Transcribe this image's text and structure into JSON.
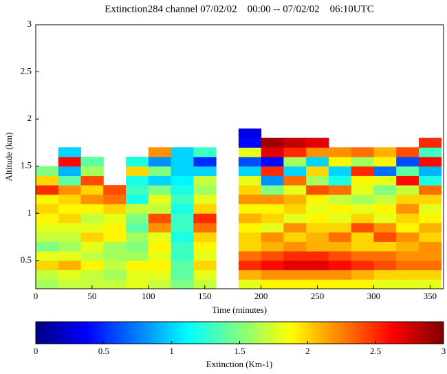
{
  "chart_data": {
    "type": "heatmap",
    "title": "Extinction284 channel 07/02/02    00:00 -- 07/02/02    06:10UTC",
    "x_label": "Time (minutes)",
    "y_label": "Altitude (km)",
    "colorbar_label": "Extinction (Km-1)",
    "colormap": "jet",
    "x_edges": [
      0,
      20,
      40,
      60,
      80,
      100,
      120,
      140,
      160,
      180,
      200,
      220,
      240,
      260,
      280,
      300,
      320,
      340,
      360
    ],
    "y_edges": [
      0.2,
      0.3,
      0.4,
      0.5,
      0.6,
      0.7,
      0.8,
      0.9,
      1.0,
      1.1,
      1.2,
      1.3,
      1.4,
      1.5,
      1.6,
      1.7,
      1.8,
      1.9
    ],
    "z": [
      [
        1.6,
        1.7,
        1.7,
        1.7,
        1.8,
        1.7,
        1.5,
        1.7,
        null,
        1.8,
        1.9,
        1.9,
        1.9,
        1.9,
        1.9,
        1.8,
        1.8,
        1.8
      ],
      [
        1.7,
        1.8,
        1.7,
        1.6,
        1.8,
        1.8,
        1.4,
        1.8,
        null,
        2.1,
        2.2,
        2.2,
        2.2,
        2.2,
        2.1,
        2.0,
        2.0,
        2.0
      ],
      [
        2.0,
        2.1,
        1.9,
        1.7,
        1.9,
        1.9,
        1.4,
        2.0,
        null,
        2.5,
        2.6,
        2.7,
        2.7,
        2.6,
        2.5,
        2.4,
        2.3,
        2.3
      ],
      [
        1.8,
        1.8,
        1.7,
        1.6,
        1.6,
        1.8,
        1.3,
        1.8,
        null,
        2.3,
        2.4,
        2.5,
        2.5,
        2.4,
        2.3,
        2.3,
        2.2,
        2.2
      ],
      [
        1.5,
        1.6,
        1.8,
        1.6,
        1.5,
        1.9,
        1.3,
        1.9,
        null,
        2.0,
        2.1,
        2.2,
        2.1,
        2.1,
        2.0,
        2.0,
        2.1,
        2.2
      ],
      [
        1.7,
        1.7,
        2.0,
        1.9,
        1.6,
        1.8,
        1.2,
        2.0,
        null,
        2.0,
        2.2,
        2.0,
        2.1,
        2.3,
        2.0,
        2.4,
        2.2,
        2.0
      ],
      [
        1.8,
        1.8,
        1.8,
        1.9,
        1.4,
        2.2,
        1.3,
        2.3,
        null,
        1.9,
        1.8,
        2.2,
        2.0,
        2.0,
        2.4,
        2.2,
        1.9,
        2.1
      ],
      [
        1.9,
        2.0,
        1.7,
        1.8,
        1.5,
        2.4,
        1.3,
        2.5,
        null,
        2.1,
        2.0,
        1.8,
        1.9,
        1.8,
        2.0,
        1.8,
        2.0,
        1.9
      ],
      [
        2.0,
        1.9,
        1.9,
        2.0,
        1.7,
        1.7,
        1.2,
        2.0,
        null,
        1.9,
        1.9,
        2.0,
        1.8,
        1.9,
        1.8,
        1.9,
        2.2,
        1.8
      ],
      [
        1.9,
        2.0,
        2.2,
        2.3,
        1.2,
        1.8,
        1.3,
        1.8,
        null,
        2.2,
        2.2,
        2.1,
        1.9,
        1.7,
        1.6,
        1.7,
        2.0,
        2.0
      ],
      [
        2.5,
        2.2,
        2.0,
        2.4,
        1.3,
        1.5,
        1.2,
        1.6,
        null,
        2.0,
        1.5,
        1.8,
        2.4,
        2.3,
        1.8,
        1.5,
        1.7,
        2.3
      ],
      [
        2.0,
        1.4,
        2.4,
        null,
        1.2,
        1.0,
        1.1,
        1.7,
        null,
        1.8,
        0.8,
        2.3,
        1.6,
        1.2,
        1.9,
        1.8,
        2.6,
        1.2
      ],
      [
        1.5,
        0.9,
        1.6,
        null,
        2.0,
        1.5,
        1.0,
        1.0,
        null,
        1.0,
        2.5,
        1.0,
        2.0,
        1.0,
        2.5,
        0.7,
        1.4,
        0.9
      ],
      [
        null,
        2.6,
        1.4,
        null,
        1.2,
        0.8,
        1.0,
        0.5,
        null,
        0.6,
        0.4,
        1.6,
        1.0,
        1.9,
        1.6,
        1.9,
        0.6,
        2.6
      ],
      [
        null,
        1.0,
        null,
        null,
        null,
        2.2,
        1.0,
        1.3,
        null,
        1.8,
        2.7,
        2.5,
        2.2,
        2.2,
        2.3,
        2.1,
        2.4,
        1.3
      ],
      [
        null,
        null,
        null,
        null,
        null,
        null,
        null,
        null,
        null,
        0.4,
        2.9,
        2.8,
        2.7,
        null,
        null,
        null,
        null,
        2.5
      ],
      [
        null,
        null,
        null,
        null,
        null,
        null,
        null,
        null,
        null,
        0.3,
        null,
        null,
        null,
        null,
        null,
        null,
        null,
        null
      ]
    ],
    "xlim": [
      0,
      362
    ],
    "ylim": [
      0.2,
      3
    ],
    "clim": [
      0,
      3
    ],
    "xticks": [
      0,
      50,
      100,
      150,
      200,
      250,
      300,
      350
    ],
    "yticks": [
      0.5,
      1,
      1.5,
      2,
      2.5,
      3
    ],
    "cticks": [
      0,
      0.5,
      1,
      1.5,
      2,
      2.5,
      3
    ]
  }
}
